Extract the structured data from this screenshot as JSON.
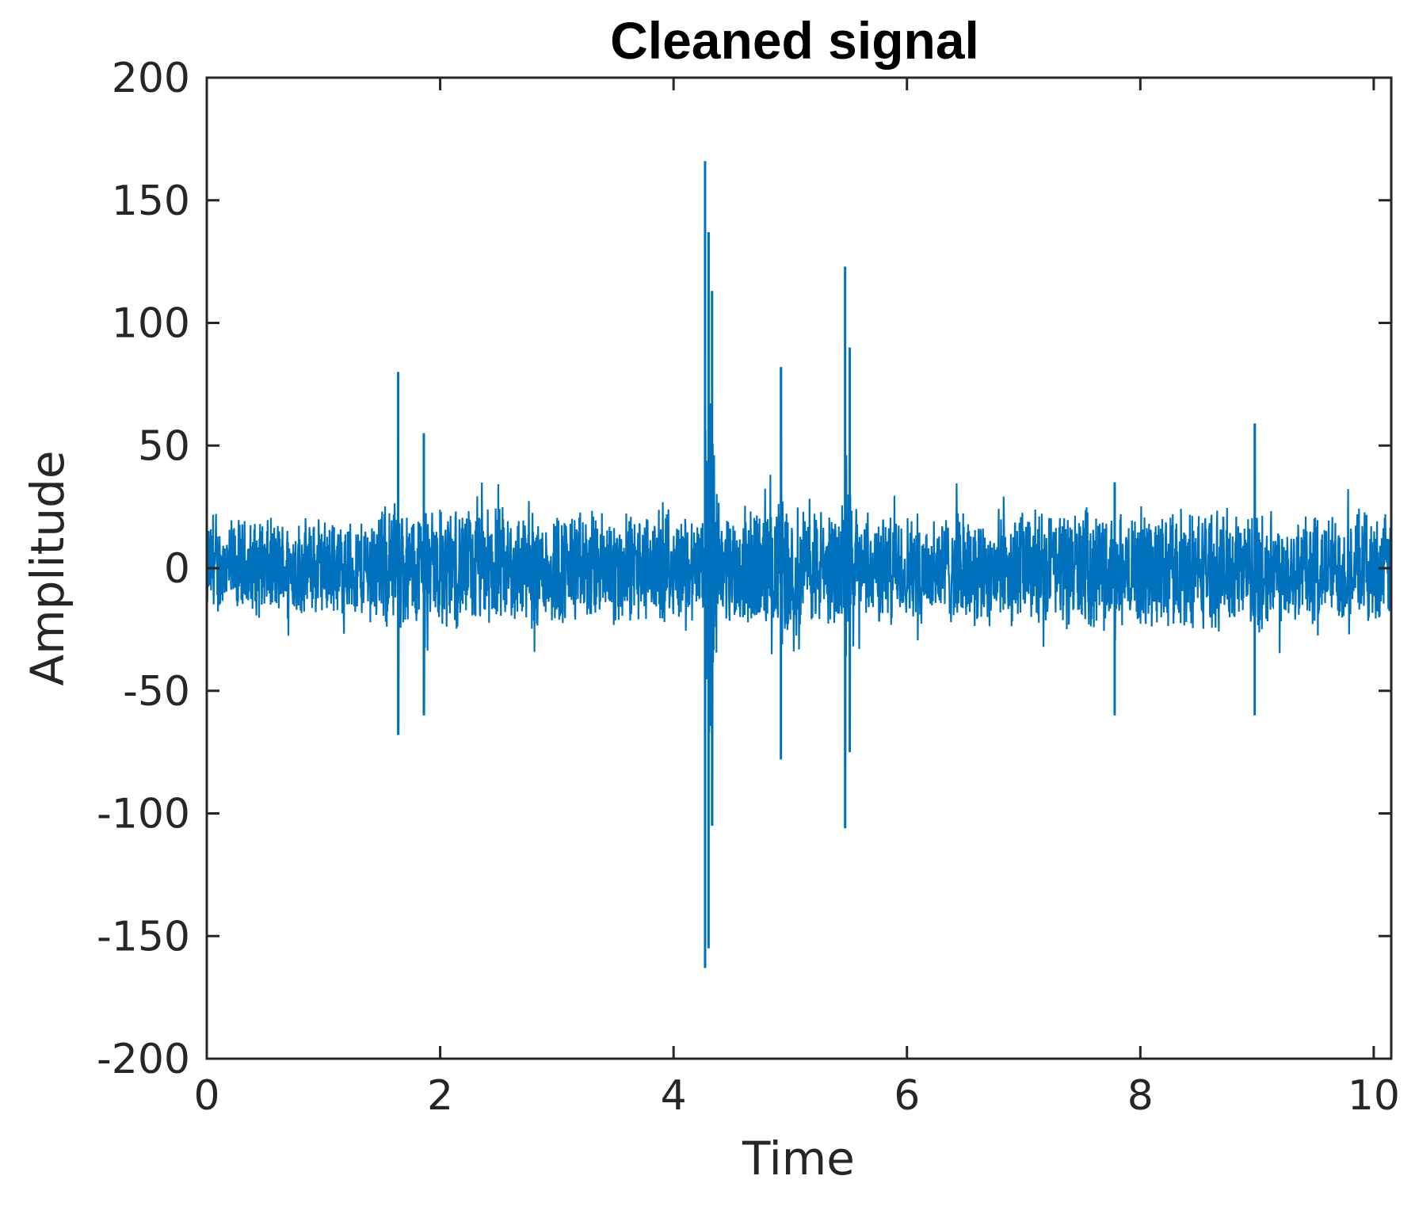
{
  "chart_data": {
    "type": "line",
    "title": "Cleaned signal",
    "xlabel": "Time",
    "ylabel": "Amplitude",
    "xlim": [
      0,
      10.15
    ],
    "ylim": [
      -200,
      200
    ],
    "xticks": [
      0,
      2,
      4,
      6,
      8,
      10
    ],
    "yticks": [
      -200,
      -150,
      -100,
      -50,
      0,
      50,
      100,
      150,
      200
    ],
    "xtick_labels": [
      "0",
      "2",
      "4",
      "6",
      "8",
      "10"
    ],
    "ytick_labels": [
      "-200",
      "-150",
      "-100",
      "-50",
      "0",
      "50",
      "100",
      "150",
      "200"
    ],
    "grid": false,
    "box": true,
    "series": [
      {
        "color": "#0072BD",
        "noise_envelope": [
          {
            "x": 0.0,
            "amp": 22
          },
          {
            "x": 1.3,
            "amp": 22
          },
          {
            "x": 1.5,
            "amp": 28
          },
          {
            "x": 2.8,
            "amp": 27
          },
          {
            "x": 4.1,
            "amp": 24
          },
          {
            "x": 5.0,
            "amp": 30
          },
          {
            "x": 5.6,
            "amp": 24
          },
          {
            "x": 7.0,
            "amp": 26
          },
          {
            "x": 8.3,
            "amp": 27
          },
          {
            "x": 10.15,
            "amp": 24
          }
        ],
        "spikes": [
          {
            "x": 1.64,
            "max": 80,
            "min": -68
          },
          {
            "x": 1.86,
            "max": 55,
            "min": -60
          },
          {
            "x": 4.27,
            "max": 166,
            "min": -163
          },
          {
            "x": 4.3,
            "max": 137,
            "min": -155
          },
          {
            "x": 4.33,
            "max": 113,
            "min": -105
          },
          {
            "x": 4.92,
            "max": 82,
            "min": -78
          },
          {
            "x": 5.47,
            "max": 123,
            "min": -106
          },
          {
            "x": 5.51,
            "max": 90,
            "min": -75
          },
          {
            "x": 7.78,
            "max": 35,
            "min": -60
          },
          {
            "x": 8.98,
            "max": 59,
            "min": -60
          }
        ]
      }
    ]
  }
}
